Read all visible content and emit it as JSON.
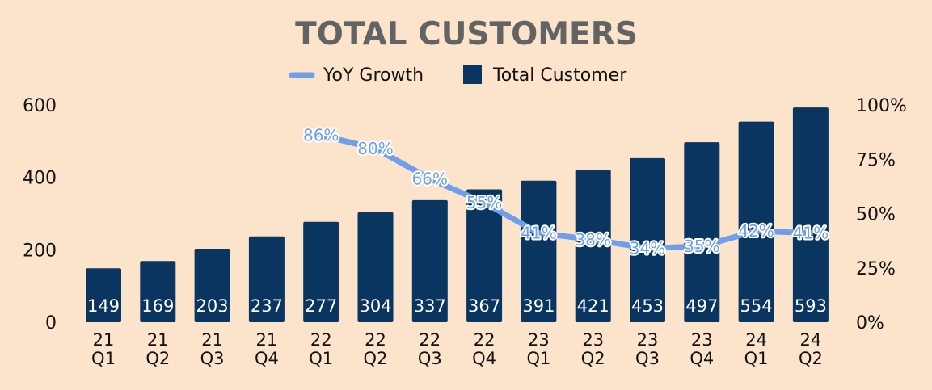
{
  "chart_data": {
    "type": "bar",
    "title": "TOTAL CUSTOMERS",
    "legend": [
      {
        "name": "YoY Growth",
        "kind": "line"
      },
      {
        "name": "Total Customer",
        "kind": "bar"
      }
    ],
    "categories": [
      [
        "21",
        "Q1"
      ],
      [
        "21",
        "Q2"
      ],
      [
        "21",
        "Q3"
      ],
      [
        "21",
        "Q4"
      ],
      [
        "22",
        "Q1"
      ],
      [
        "22",
        "Q2"
      ],
      [
        "22",
        "Q3"
      ],
      [
        "22",
        "Q4"
      ],
      [
        "23",
        "Q1"
      ],
      [
        "23",
        "Q2"
      ],
      [
        "23",
        "Q3"
      ],
      [
        "23",
        "Q4"
      ],
      [
        "24",
        "Q1"
      ],
      [
        "24",
        "Q2"
      ]
    ],
    "series": [
      {
        "name": "Total Customer",
        "type": "bar",
        "axis": "left",
        "values": [
          149,
          169,
          203,
          237,
          277,
          304,
          337,
          367,
          391,
          421,
          453,
          497,
          554,
          593
        ]
      },
      {
        "name": "YoY Growth",
        "type": "line",
        "axis": "right",
        "values": [
          null,
          null,
          null,
          null,
          86,
          80,
          66,
          55,
          41,
          38,
          34,
          35,
          42,
          41
        ],
        "labels": [
          "",
          "",
          "",
          "",
          "86%",
          "80%",
          "66%",
          "55%",
          "41%",
          "38%",
          "34%",
          "35%",
          "42%",
          "41%"
        ]
      }
    ],
    "y_left": {
      "min": 0,
      "max": 600,
      "ticks": [
        "0",
        "200",
        "400",
        "600"
      ],
      "tick_values": [
        0,
        200,
        400,
        600
      ]
    },
    "y_right": {
      "min": 0,
      "max": 100,
      "ticks": [
        "0%",
        "25%",
        "50%",
        "75%",
        "100%"
      ],
      "tick_values": [
        0,
        25,
        50,
        75,
        100
      ]
    },
    "grid": false,
    "legend_position": "top-center"
  },
  "colors": {
    "background": "#fce4cc",
    "bar": "#0a3561",
    "line": "#6e9fe8",
    "title": "#636363",
    "text": "#111111",
    "bar_label": "#ffffff"
  }
}
